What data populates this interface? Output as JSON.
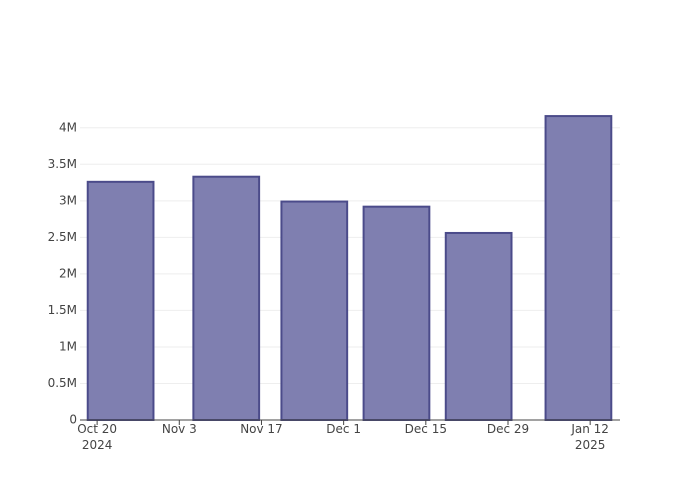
{
  "chart_data": {
    "type": "bar",
    "x": [
      "2024-10-24",
      "2024-11-11",
      "2024-11-26",
      "2024-12-10",
      "2024-12-24",
      "2025-01-10"
    ],
    "values": [
      3260000,
      3330000,
      2990000,
      2920000,
      2560000,
      4160000
    ],
    "color": "#7f7fb0",
    "edge_color": "#4b4b8a",
    "bar_width_days": 11.2,
    "xlim": [
      "2024-10-17T02:00",
      "2025-01-17T02:00"
    ],
    "xticks": [
      {
        "value": "2024-10-20",
        "label": "Oct 20\n2024"
      },
      {
        "value": "2024-11-03",
        "label": "Nov 3"
      },
      {
        "value": "2024-11-17",
        "label": "Nov 17"
      },
      {
        "value": "2024-12-01",
        "label": "Dec 1"
      },
      {
        "value": "2024-12-15",
        "label": "Dec 15"
      },
      {
        "value": "2024-12-29",
        "label": "Dec 29"
      },
      {
        "value": "2025-01-12",
        "label": "Jan 12\n2025"
      }
    ],
    "ylim": [
      0,
      4380000
    ],
    "yticks": [
      0,
      {
        "value": 500000,
        "label": "0.5M"
      },
      {
        "value": 1000000,
        "label": "1M"
      },
      {
        "value": 1500000,
        "label": "1.5M"
      },
      {
        "value": 2000000,
        "label": "2M"
      },
      {
        "value": 2500000,
        "label": "2.5M"
      },
      {
        "value": 3000000,
        "label": "3M"
      },
      {
        "value": 3500000,
        "label": "3.5M"
      },
      {
        "value": 4000000,
        "label": "4M"
      }
    ],
    "grid": true
  }
}
